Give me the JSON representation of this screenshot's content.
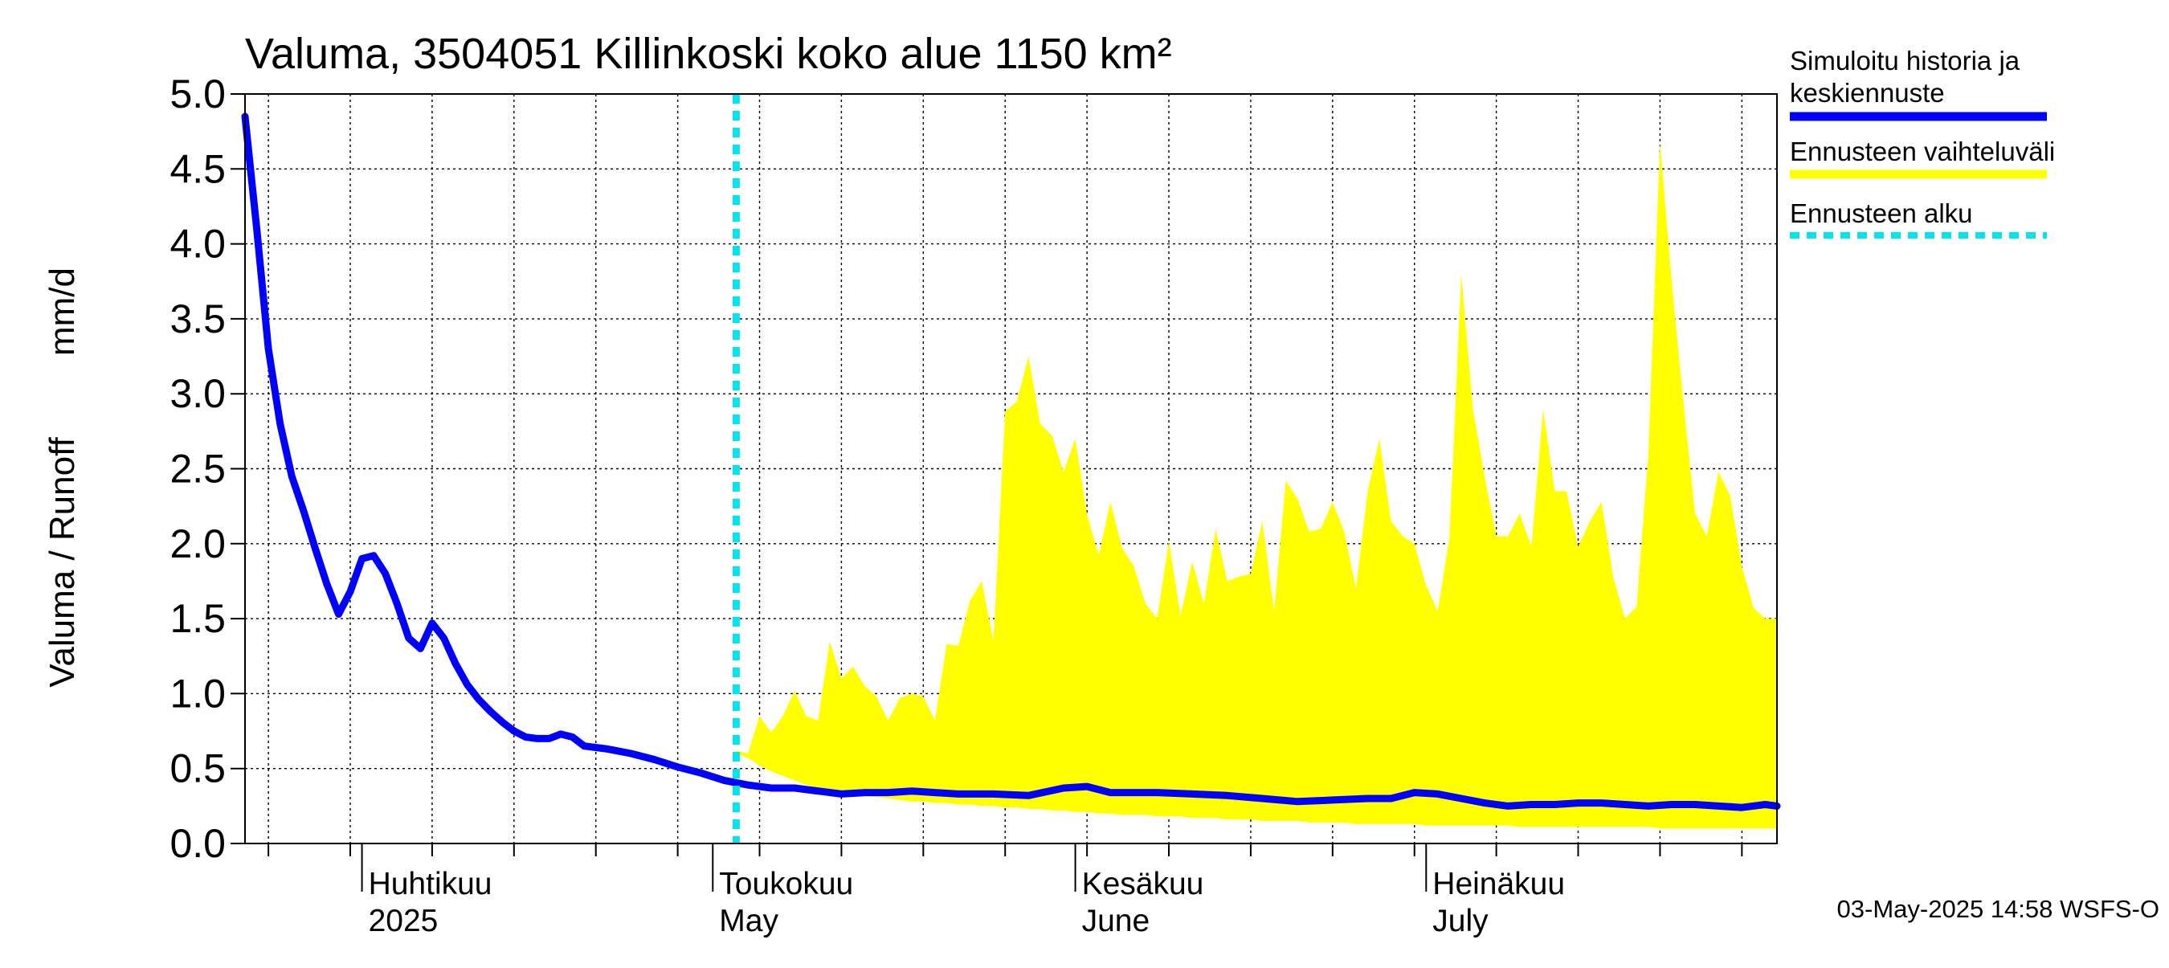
{
  "chart_data": {
    "type": "area",
    "title": "Valuma, 3504051 Killinkoski koko alue 1150 km²",
    "ylabel_fi": "Valuma / Runoff",
    "ylabel_unit": "mm/d",
    "ylim": [
      0,
      5
    ],
    "yticks": [
      "0.0",
      "0.5",
      "1.0",
      "1.5",
      "2.0",
      "2.5",
      "3.0",
      "3.5",
      "4.0",
      "4.5",
      "5.0"
    ],
    "x_range": [
      "2025-03-22",
      "2025-07-31"
    ],
    "month_labels": [
      {
        "line1": "Huhtikuu",
        "line2": "2025",
        "date": "2025-04-01"
      },
      {
        "line1": "Toukokuu",
        "line2": "May",
        "date": "2025-05-01"
      },
      {
        "line1": "Kesäkuu",
        "line2": "June",
        "date": "2025-06-01"
      },
      {
        "line1": "Heinäkuu",
        "line2": "July",
        "date": "2025-07-01"
      }
    ],
    "grid": true,
    "forecast_start": "2025-05-03",
    "legend_position": "right",
    "series": [
      {
        "name": "Simuloitu historia ja keskiennuste",
        "color": "#0000ff",
        "x": [
          "2025-03-22",
          "2025-03-23",
          "2025-03-24",
          "2025-03-25",
          "2025-03-26",
          "2025-03-27",
          "2025-03-28",
          "2025-03-29",
          "2025-03-30",
          "2025-03-31",
          "2025-04-01",
          "2025-04-02",
          "2025-04-03",
          "2025-04-04",
          "2025-04-05",
          "2025-04-06",
          "2025-04-07",
          "2025-04-08",
          "2025-04-09",
          "2025-04-10",
          "2025-04-11",
          "2025-04-12",
          "2025-04-13",
          "2025-04-14",
          "2025-04-15",
          "2025-04-16",
          "2025-04-17",
          "2025-04-18",
          "2025-04-19",
          "2025-04-20",
          "2025-04-22",
          "2025-04-24",
          "2025-04-26",
          "2025-04-28",
          "2025-04-30",
          "2025-05-02",
          "2025-05-04",
          "2025-05-06",
          "2025-05-08",
          "2025-05-10",
          "2025-05-12",
          "2025-05-14",
          "2025-05-16",
          "2025-05-18",
          "2025-05-20",
          "2025-05-22",
          "2025-05-25",
          "2025-05-28",
          "2025-05-31",
          "2025-06-02",
          "2025-06-04",
          "2025-06-06",
          "2025-06-08",
          "2025-06-11",
          "2025-06-14",
          "2025-06-17",
          "2025-06-20",
          "2025-06-23",
          "2025-06-26",
          "2025-06-28",
          "2025-06-30",
          "2025-07-02",
          "2025-07-04",
          "2025-07-06",
          "2025-07-08",
          "2025-07-10",
          "2025-07-12",
          "2025-07-14",
          "2025-07-16",
          "2025-07-18",
          "2025-07-20",
          "2025-07-22",
          "2025-07-24",
          "2025-07-26",
          "2025-07-28",
          "2025-07-30",
          "2025-07-31"
        ],
        "y": [
          4.85,
          4.1,
          3.3,
          2.8,
          2.45,
          2.22,
          1.97,
          1.73,
          1.53,
          1.68,
          1.9,
          1.92,
          1.8,
          1.6,
          1.37,
          1.3,
          1.47,
          1.37,
          1.2,
          1.06,
          0.96,
          0.88,
          0.81,
          0.75,
          0.71,
          0.7,
          0.7,
          0.73,
          0.71,
          0.65,
          0.63,
          0.6,
          0.56,
          0.51,
          0.47,
          0.42,
          0.39,
          0.37,
          0.37,
          0.35,
          0.33,
          0.34,
          0.34,
          0.35,
          0.34,
          0.33,
          0.33,
          0.32,
          0.37,
          0.38,
          0.34,
          0.34,
          0.34,
          0.33,
          0.32,
          0.3,
          0.28,
          0.29,
          0.3,
          0.3,
          0.34,
          0.33,
          0.3,
          0.27,
          0.25,
          0.26,
          0.26,
          0.27,
          0.27,
          0.26,
          0.25,
          0.26,
          0.26,
          0.25,
          0.24,
          0.26,
          0.25
        ]
      },
      {
        "name": "Ennusteen vaihteluväli",
        "color": "#ffff00",
        "x": [
          "2025-05-03",
          "2025-05-04",
          "2025-05-05",
          "2025-05-06",
          "2025-05-07",
          "2025-05-08",
          "2025-05-09",
          "2025-05-10",
          "2025-05-11",
          "2025-05-12",
          "2025-05-13",
          "2025-05-14",
          "2025-05-15",
          "2025-05-16",
          "2025-05-17",
          "2025-05-18",
          "2025-05-19",
          "2025-05-20",
          "2025-05-21",
          "2025-05-22",
          "2025-05-23",
          "2025-05-24",
          "2025-05-25",
          "2025-05-26",
          "2025-05-27",
          "2025-05-28",
          "2025-05-29",
          "2025-05-30",
          "2025-05-31",
          "2025-06-01",
          "2025-06-02",
          "2025-06-03",
          "2025-06-04",
          "2025-06-05",
          "2025-06-06",
          "2025-06-07",
          "2025-06-08",
          "2025-06-09",
          "2025-06-10",
          "2025-06-11",
          "2025-06-12",
          "2025-06-13",
          "2025-06-14",
          "2025-06-15",
          "2025-06-16",
          "2025-06-17",
          "2025-06-18",
          "2025-06-19",
          "2025-06-20",
          "2025-06-21",
          "2025-06-22",
          "2025-06-23",
          "2025-06-24",
          "2025-06-25",
          "2025-06-26",
          "2025-06-27",
          "2025-06-28",
          "2025-06-29",
          "2025-06-30",
          "2025-07-01",
          "2025-07-02",
          "2025-07-03",
          "2025-07-04",
          "2025-07-05",
          "2025-07-06",
          "2025-07-07",
          "2025-07-08",
          "2025-07-09",
          "2025-07-10",
          "2025-07-11",
          "2025-07-12",
          "2025-07-13",
          "2025-07-14",
          "2025-07-15",
          "2025-07-16",
          "2025-07-17",
          "2025-07-18",
          "2025-07-19",
          "2025-07-20",
          "2025-07-21",
          "2025-07-22",
          "2025-07-23",
          "2025-07-24",
          "2025-07-25",
          "2025-07-26",
          "2025-07-27",
          "2025-07-28",
          "2025-07-29",
          "2025-07-30",
          "2025-07-31"
        ],
        "upper": [
          0.62,
          0.6,
          0.85,
          0.74,
          0.85,
          1.02,
          0.85,
          0.82,
          1.35,
          1.1,
          1.18,
          1.05,
          0.98,
          0.82,
          0.97,
          1.0,
          0.98,
          0.82,
          1.33,
          1.32,
          1.62,
          1.75,
          1.35,
          2.88,
          2.95,
          3.25,
          2.8,
          2.72,
          2.48,
          2.7,
          2.2,
          1.92,
          2.28,
          1.97,
          1.85,
          1.6,
          1.5,
          2.02,
          1.52,
          1.88,
          1.6,
          2.1,
          1.75,
          1.78,
          1.8,
          2.15,
          1.55,
          2.42,
          2.3,
          2.08,
          2.1,
          2.28,
          2.08,
          1.7,
          2.35,
          2.7,
          2.15,
          2.05,
          2.0,
          1.72,
          1.55,
          2.05,
          3.8,
          2.9,
          2.45,
          2.05,
          2.05,
          2.2,
          1.98,
          2.9,
          2.35,
          2.35,
          1.98,
          2.15,
          2.28,
          1.78,
          1.5,
          1.58,
          2.6,
          4.68,
          3.75,
          2.95,
          2.2,
          2.05,
          2.48,
          2.32,
          1.85,
          1.57,
          1.5,
          1.5
        ],
        "lower": [
          0.6,
          0.57,
          0.52,
          0.48,
          0.45,
          0.42,
          0.39,
          0.37,
          0.35,
          0.34,
          0.33,
          0.32,
          0.31,
          0.3,
          0.29,
          0.28,
          0.28,
          0.27,
          0.27,
          0.26,
          0.26,
          0.25,
          0.25,
          0.24,
          0.24,
          0.23,
          0.23,
          0.22,
          0.22,
          0.21,
          0.21,
          0.2,
          0.2,
          0.19,
          0.19,
          0.19,
          0.18,
          0.18,
          0.18,
          0.17,
          0.17,
          0.17,
          0.16,
          0.16,
          0.16,
          0.15,
          0.15,
          0.15,
          0.15,
          0.14,
          0.14,
          0.14,
          0.14,
          0.13,
          0.13,
          0.13,
          0.13,
          0.13,
          0.13,
          0.12,
          0.12,
          0.12,
          0.12,
          0.12,
          0.12,
          0.12,
          0.12,
          0.11,
          0.11,
          0.11,
          0.11,
          0.11,
          0.11,
          0.11,
          0.11,
          0.11,
          0.11,
          0.11,
          0.11,
          0.1,
          0.1,
          0.1,
          0.1,
          0.1,
          0.1,
          0.1,
          0.1,
          0.1,
          0.1,
          0.1
        ]
      },
      {
        "name": "Ennusteen alku",
        "color": "#00e5ee"
      }
    ],
    "legend": [
      {
        "line1": "Simuloitu historia ja",
        "line2": "keskiennuste",
        "color": "#0000ff",
        "style": "solid"
      },
      {
        "line1": "Ennusteen vaihteluväli",
        "line2": "",
        "color": "#ffff00",
        "style": "solid"
      },
      {
        "line1": "Ennusteen alku",
        "line2": "",
        "color": "#00e5ee",
        "style": "dotted"
      }
    ],
    "footer": "03-May-2025 14:58 WSFS-O"
  }
}
